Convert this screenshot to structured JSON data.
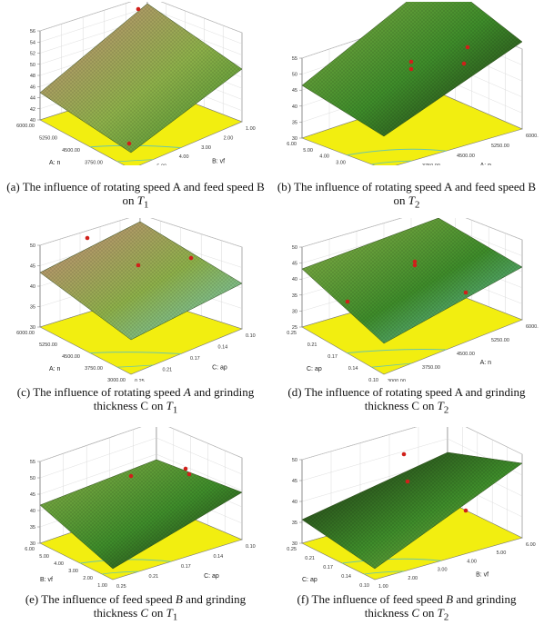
{
  "colors": {
    "floor": "#f2ee10",
    "surface_top": "#c98a7c",
    "surface_mid": "#8db04a",
    "surface_low": "#3e8c2a",
    "surface_dark": "#1c2a12",
    "surface_blue": "#6fc6c4",
    "contour": "#6cc7a8",
    "marker": "#d0201a",
    "axis": "#777777"
  },
  "panels": [
    {
      "id": "a",
      "caption": {
        "prefix": "(a) The influence of rotating speed A and feed speed B on ",
        "var": "T",
        "sub": "1"
      },
      "z_ticks": [
        "56",
        "54",
        "52",
        "50",
        "48",
        "46",
        "44",
        "42",
        "40"
      ],
      "left_ticks": [
        "6000.00",
        "5250.00",
        "4500.00",
        "3750.00",
        "3000.00"
      ],
      "right_ticks": [
        "6.00",
        "5.00",
        "4.00",
        "3.00",
        "2.00",
        "1.00"
      ],
      "left_label": "A: n",
      "right_label": "B: vf"
    },
    {
      "id": "b",
      "caption": {
        "prefix": "(b) The influence of rotating speed A and feed speed B on ",
        "var": "T",
        "sub": "2"
      },
      "z_ticks": [
        "55",
        "50",
        "45",
        "40",
        "35",
        "30"
      ],
      "left_ticks": [
        "6.00",
        "5.00",
        "4.00",
        "3.00",
        "2.00",
        "1.00"
      ],
      "right_ticks": [
        "3000.00",
        "3750.00",
        "4500.00",
        "5250.00",
        "6000.00"
      ],
      "left_label": "B: vf",
      "right_label": "A: n"
    },
    {
      "id": "c",
      "caption": {
        "prefix": "(c) The influence of rotating speed ",
        "mid_var": "A",
        "mid": " and grinding thickness C on ",
        "var": "T",
        "sub": "1"
      },
      "z_ticks": [
        "50",
        "45",
        "40",
        "35",
        "30"
      ],
      "left_ticks": [
        "6000.00",
        "5250.00",
        "4500.00",
        "3750.00",
        "3000.00"
      ],
      "right_ticks": [
        "0.25",
        "0.21",
        "0.17",
        "0.14",
        "0.10"
      ],
      "left_label": "A: n",
      "right_label": "C: ap"
    },
    {
      "id": "d",
      "caption": {
        "prefix": "(d) The influence of rotating speed A and grinding thickness C on ",
        "var": "T",
        "sub": "2"
      },
      "z_ticks": [
        "50",
        "45",
        "40",
        "35",
        "30",
        "25"
      ],
      "left_ticks": [
        "0.25",
        "0.21",
        "0.17",
        "0.14",
        "0.10"
      ],
      "right_ticks": [
        "3000.00",
        "3750.00",
        "4500.00",
        "5250.00",
        "6000.00"
      ],
      "left_label": "C: ap",
      "right_label": "A: n"
    },
    {
      "id": "e",
      "caption": {
        "prefix": "(e) The influence of feed speed ",
        "mid_var": "B",
        "mid": " and grinding thickness ",
        "mid_var2": "C",
        "mid2": " on ",
        "var": "T",
        "sub": "1"
      },
      "z_ticks": [
        "55",
        "50",
        "45",
        "40",
        "35",
        "30"
      ],
      "left_ticks": [
        "6.00",
        "5.00",
        "4.00",
        "3.00",
        "2.00",
        "1.00"
      ],
      "right_ticks": [
        "0.25",
        "0.21",
        "0.17",
        "0.14",
        "0.10"
      ],
      "left_label": "B: vf",
      "right_label": "C: ap"
    },
    {
      "id": "f",
      "caption": {
        "prefix": "(f) The influence of feed speed ",
        "mid_var": "B",
        "mid": " and grinding thickness ",
        "mid_var2": "C",
        "mid2": " on ",
        "var": "T",
        "sub": "2"
      },
      "z_ticks": [
        "50",
        "45",
        "40",
        "35",
        "30"
      ],
      "left_ticks": [
        "0.25",
        "0.21",
        "0.17",
        "0.14",
        "0.10"
      ],
      "right_ticks": [
        "1.00",
        "2.00",
        "3.00",
        "4.00",
        "5.00",
        "6.00"
      ],
      "left_label": "C: ap",
      "right_label": "B: vf"
    }
  ]
}
